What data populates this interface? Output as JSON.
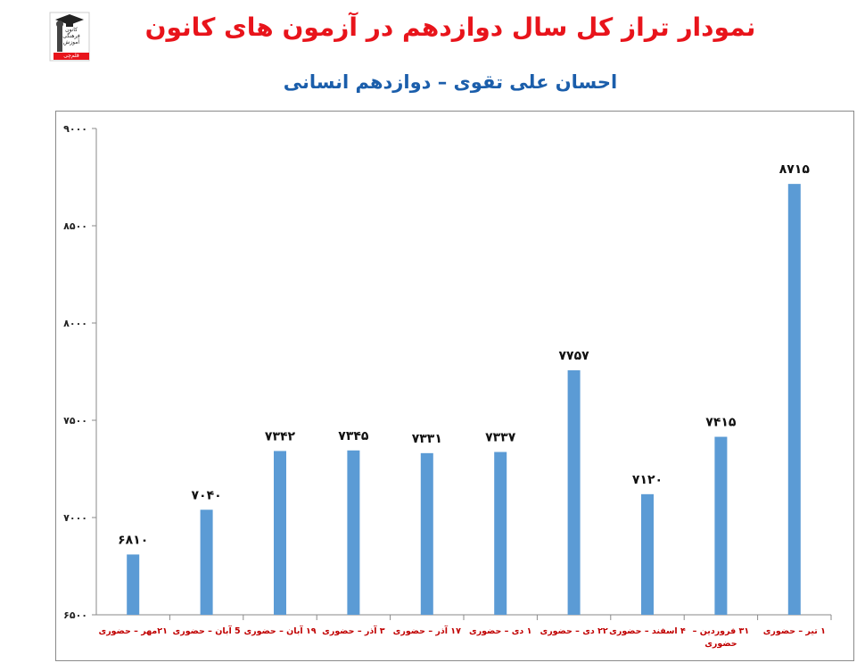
{
  "title": "نمودار تراز کل سال دوازدهم در آزمون های کانون",
  "subtitle": "احسان علی تقوی – دوازدهم انسانی",
  "logo": {
    "lines": [
      "کانون",
      "فرهنگی",
      "آموزش"
    ],
    "badge": "قلم‌چی"
  },
  "colors": {
    "title": "#e8141b",
    "subtitle": "#1b5eab",
    "bar": "#5b9bd5",
    "xlabel": "#c00000"
  },
  "chart_data": {
    "type": "bar",
    "title": "",
    "xlabel": "",
    "ylabel": "",
    "ylim": [
      6500,
      9000
    ],
    "yticks": [
      6500,
      7000,
      7500,
      8000,
      8500,
      9000
    ],
    "ytick_labels": [
      "۶۵۰۰",
      "۷۰۰۰",
      "۷۵۰۰",
      "۸۰۰۰",
      "۸۵۰۰",
      "۹۰۰۰"
    ],
    "grid": false,
    "categories": [
      "۲۱مهر – حضوری",
      "5 آبان – حضوری",
      "۱۹ آبان – حضوری",
      "۳ آذر – حضوری",
      "۱۷ آذر – حضوری",
      "۱ دی – حضوری",
      "۲۲ دی – حضوری",
      "۴ اسفند – حضوری",
      "۳۱ فروردین – حضوری",
      "۱ تیر – حضوری"
    ],
    "values": [
      6810,
      7040,
      7342,
      7345,
      7331,
      7337,
      7757,
      7120,
      7415,
      8715
    ],
    "data_labels": [
      "۶۸۱۰",
      "۷۰۴۰",
      "۷۳۴۲",
      "۷۳۴۵",
      "۷۳۳۱",
      "۷۳۳۷",
      "۷۷۵۷",
      "۷۱۲۰",
      "۷۴۱۵",
      "۸۷۱۵"
    ]
  }
}
